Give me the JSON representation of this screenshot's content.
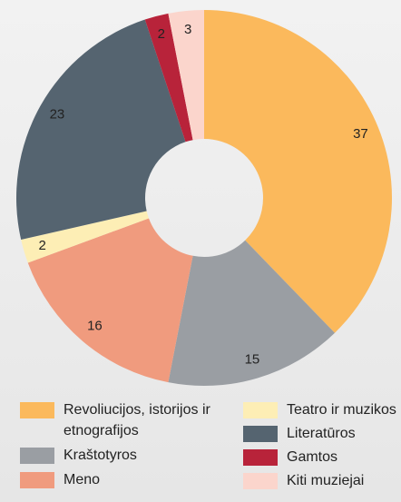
{
  "chart_data": {
    "type": "donut",
    "categories": [
      "Revoliucijos, istorijos ir etnografijos",
      "Kraštotyros",
      "Meno",
      "Teatro ir muzikos",
      "Literatūros",
      "Gamtos",
      "Kiti muziejai"
    ],
    "series": [
      {
        "colors": [
          "#fbb95c",
          "#9a9ea3",
          "#f09b7e",
          "#fdeeb5",
          "#556470",
          "#b8233a",
          "#fbd5cc"
        ],
        "values": [
          37,
          15,
          16,
          2,
          23,
          2,
          3
        ]
      }
    ],
    "legend": "bottom"
  }
}
